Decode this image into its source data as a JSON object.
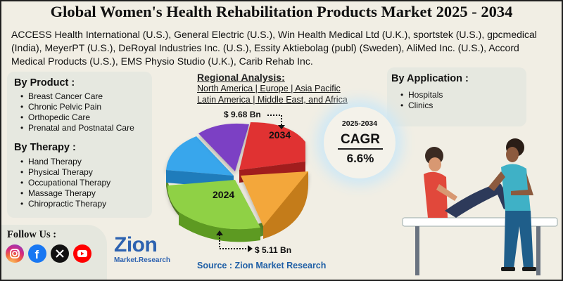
{
  "title": "Global Women's Health Rehabilitation Products Market 2025 - 2034",
  "companies_text": "ACCESS Health International (U.S.), General Electric (U.S.), Win Health Medical Ltd (U.K.), sportstek (U.S.), gpcmedical (India), MeyerPT (U.S.), DeRoyal Industries Inc. (U.S.), Essity Aktiebolag (publ) (Sweden), AliMed Inc. (U.S.), Accord Medical Products (U.S.), EMS Physio Studio (U.K.), Carib Rehab Inc.",
  "by_product": {
    "title": "By Product :",
    "items": [
      "Breast Cancer Care",
      "Chronic Pelvic Pain",
      "Orthopedic Care",
      "Prenatal and Postnatal Care"
    ]
  },
  "by_therapy": {
    "title": "By Therapy :",
    "items": [
      "Hand Therapy",
      "Physical Therapy",
      "Occupational Therapy",
      "Massage Therapy",
      "Chiropractic Therapy"
    ]
  },
  "regional": {
    "title": "Regional Analysis:",
    "line1": "North America | Europe | Asia Pacific",
    "line2": "Latin America | Middle East, and Africa"
  },
  "by_application": {
    "title": "By Application :",
    "items": [
      "Hospitals",
      "Clinics"
    ]
  },
  "pie": {
    "value_2034": "$ 9.68 Bn",
    "value_2024": "$ 5.11 Bn",
    "label_2034": "2034",
    "label_2024": "2024",
    "colors": [
      "#e03333",
      "#f3a73a",
      "#8fd145",
      "#37a6ec",
      "#7c3fc4"
    ]
  },
  "cagr": {
    "years": "2025-2034",
    "label": "CAGR",
    "value": "6.6%"
  },
  "follow": {
    "label": "Follow Us :",
    "icons": [
      "instagram-icon",
      "facebook-icon",
      "x-icon",
      "youtube-icon"
    ]
  },
  "logo": {
    "word": "Zion",
    "sub": "Market.Research"
  },
  "source": "Source : Zion Market Research"
}
